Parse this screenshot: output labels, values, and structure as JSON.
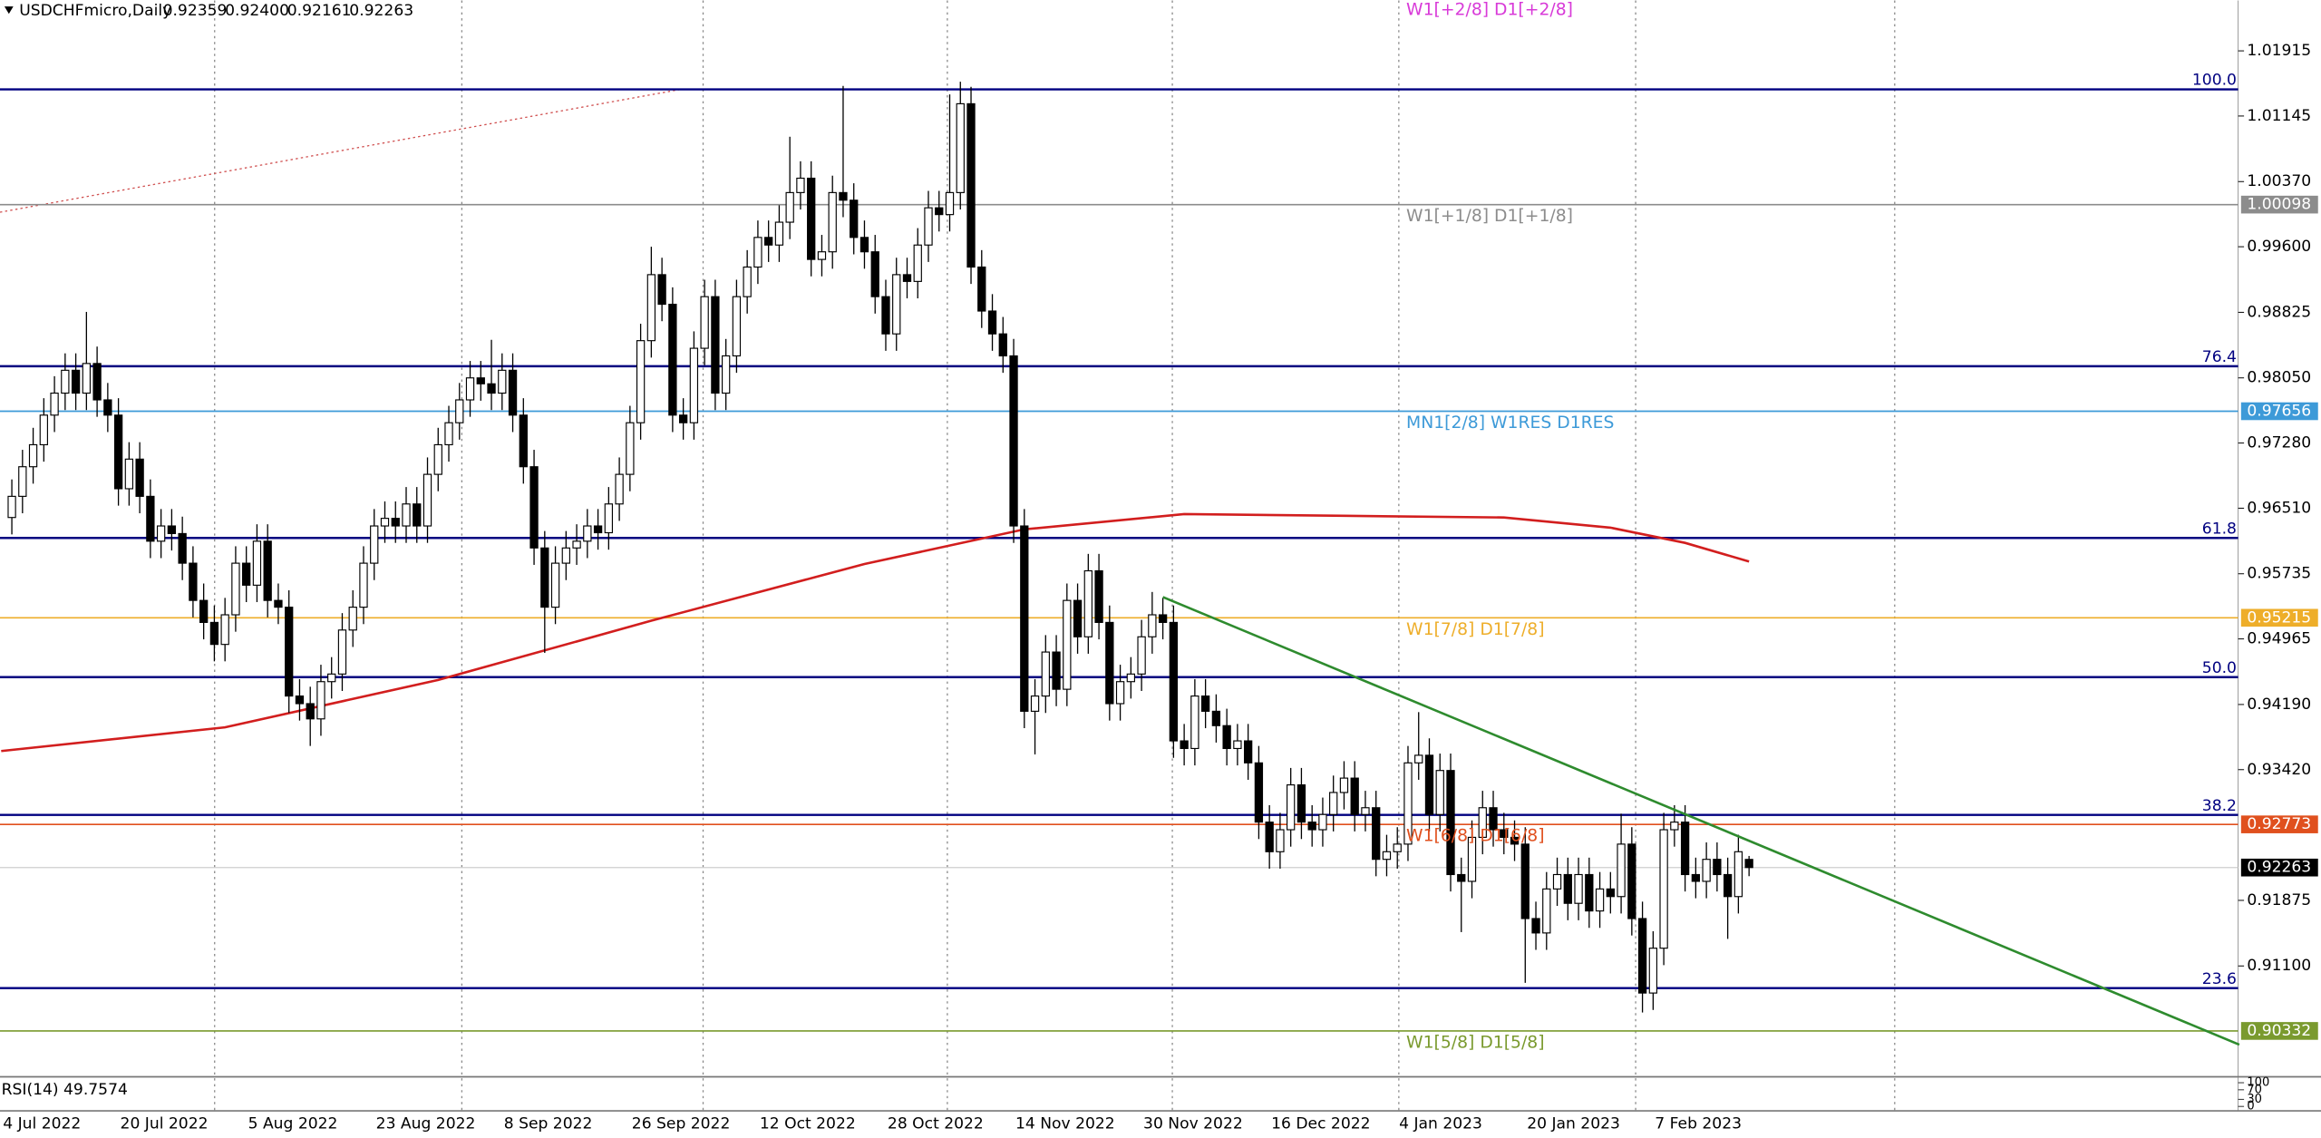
{
  "chart_data": {
    "type": "candlestick",
    "header": {
      "symbol": "USDCHFmicro,Daily",
      "ohlc_labels": [
        "0.92359",
        "0.92400",
        "0.92161",
        "0.92263"
      ]
    },
    "categories": [
      "4 Jul 2022",
      null,
      null,
      null,
      null,
      null,
      null,
      null,
      null,
      null,
      null,
      "20 Jul 2022",
      null,
      null,
      null,
      null,
      null,
      null,
      null,
      null,
      null,
      null,
      null,
      "5 Aug 2022",
      null,
      null,
      null,
      null,
      null,
      null,
      null,
      null,
      null,
      null,
      null,
      "23 Aug 2022",
      null,
      null,
      null,
      null,
      null,
      null,
      null,
      null,
      null,
      null,
      null,
      "8 Sep 2022",
      null,
      null,
      null,
      null,
      null,
      null,
      null,
      null,
      null,
      null,
      null,
      "26 Sep 2022",
      null,
      null,
      null,
      null,
      null,
      null,
      null,
      null,
      null,
      null,
      null,
      "12 Oct 2022",
      null,
      null,
      null,
      null,
      null,
      null,
      null,
      null,
      null,
      null,
      null,
      "28 Oct 2022",
      null,
      null,
      null,
      null,
      null,
      null,
      null,
      null,
      null,
      null,
      null,
      "14 Nov 2022",
      null,
      null,
      null,
      null,
      null,
      null,
      null,
      null,
      null,
      null,
      null,
      "30 Nov 2022",
      null,
      null,
      null,
      null,
      null,
      null,
      null,
      null,
      null,
      null,
      null,
      "16 Dec 2022",
      null,
      null,
      null,
      null,
      null,
      null,
      null,
      null,
      null,
      null,
      null,
      "4 Jan 2023",
      null,
      null,
      null,
      null,
      null,
      null,
      null,
      null,
      null,
      null,
      null,
      "20 Jan 2023",
      null,
      null,
      null,
      null,
      null,
      null,
      null,
      null,
      null,
      null,
      null,
      "7 Feb 2023",
      null,
      null,
      null,
      null,
      null,
      null,
      null,
      null
    ],
    "open": [
      0.964,
      0.9665,
      0.97,
      0.9726,
      0.9761,
      0.9787,
      0.9814,
      0.9787,
      0.9822,
      0.9779,
      0.9761,
      0.9674,
      0.9709,
      0.9665,
      0.9612,
      0.963,
      0.9621,
      0.9586,
      0.9542,
      0.9516,
      0.949,
      0.9525,
      0.9586,
      0.956,
      0.9612,
      0.9542,
      0.9534,
      0.9429,
      0.942,
      0.9402,
      0.9446,
      0.9455,
      0.9507,
      0.9534,
      0.9586,
      0.963,
      0.9639,
      0.963,
      0.9656,
      0.963,
      0.9691,
      0.9726,
      0.9752,
      0.9779,
      0.9805,
      0.9798,
      0.9787,
      0.9814,
      0.9761,
      0.97,
      0.9604,
      0.9534,
      0.9586,
      0.9604,
      0.9612,
      0.963,
      0.9622,
      0.9656,
      0.9691,
      0.9752,
      0.9849,
      0.9927,
      0.9892,
      0.9761,
      0.9752,
      0.984,
      0.9901,
      0.9787,
      0.9831,
      0.9901,
      0.9936,
      0.9971,
      0.9962,
      0.9989,
      1.0024,
      1.0041,
      0.9945,
      0.9954,
      1.0024,
      1.0015,
      0.9971,
      0.9954,
      0.9901,
      0.9857,
      0.9927,
      0.9919,
      0.9962,
      1.0006,
      0.9998,
      1.0024,
      1.0129,
      0.9936,
      0.9884,
      0.9857,
      0.9831,
      0.963,
      0.9411,
      0.9429,
      0.9481,
      0.9437,
      0.9542,
      0.9499,
      0.9577,
      0.9516,
      0.942,
      0.9446,
      0.9455,
      0.9499,
      0.9525,
      0.9516,
      0.9376,
      0.9367,
      0.9429,
      0.9411,
      0.9394,
      0.9367,
      0.9376,
      0.935,
      0.928,
      0.9245,
      0.9271,
      0.9324,
      0.928,
      0.9271,
      0.9289,
      0.9315,
      0.9332,
      0.9289,
      0.9297,
      0.9236,
      0.9245,
      0.9254,
      0.935,
      0.9359,
      0.9289,
      0.9341,
      0.9218,
      0.921,
      0.9262,
      0.9297,
      0.9271,
      0.9262,
      0.9254,
      0.9166,
      0.9149,
      0.9201,
      0.9218,
      0.9184,
      0.9218,
      0.9175,
      0.9201,
      0.9192,
      0.9254,
      0.9166,
      0.9078,
      0.9131,
      0.9271,
      0.928,
      0.9218,
      0.921,
      0.9236,
      0.9218,
      0.9192,
      0.92359
    ],
    "high": [
      0.9685,
      0.972,
      0.9746,
      0.9781,
      0.9807,
      0.9834,
      0.9834,
      0.9883,
      0.9842,
      0.9799,
      0.9781,
      0.9729,
      0.9729,
      0.9685,
      0.965,
      0.965,
      0.9641,
      0.9606,
      0.9562,
      0.9536,
      0.9545,
      0.9606,
      0.9606,
      0.9632,
      0.9632,
      0.9562,
      0.9554,
      0.9449,
      0.944,
      0.9466,
      0.9475,
      0.9527,
      0.9554,
      0.9606,
      0.965,
      0.9659,
      0.9659,
      0.9676,
      0.9676,
      0.9711,
      0.9746,
      0.9772,
      0.9799,
      0.9825,
      0.9825,
      0.985,
      0.9834,
      0.9834,
      0.9781,
      0.972,
      0.9624,
      0.9606,
      0.9624,
      0.9632,
      0.965,
      0.965,
      0.9676,
      0.9711,
      0.9772,
      0.9869,
      0.996,
      0.9947,
      0.9912,
      0.9781,
      0.986,
      0.9921,
      0.9921,
      0.9851,
      0.9921,
      0.9956,
      0.9991,
      0.9991,
      1.0009,
      1.009,
      1.0061,
      1.0061,
      0.9974,
      1.0044,
      1.015,
      1.0035,
      0.9991,
      0.9974,
      0.9921,
      0.9947,
      0.9947,
      0.9982,
      1.0026,
      1.0026,
      1.014,
      1.0155,
      1.0149,
      0.9956,
      0.9904,
      0.9877,
      0.9851,
      0.965,
      0.9449,
      0.9501,
      0.9501,
      0.9562,
      0.9562,
      0.9597,
      0.9597,
      0.9536,
      0.9466,
      0.9475,
      0.9519,
      0.9552,
      0.9545,
      0.9536,
      0.9396,
      0.9449,
      0.9449,
      0.9431,
      0.9414,
      0.9396,
      0.9396,
      0.937,
      0.93,
      0.9291,
      0.9344,
      0.9344,
      0.93,
      0.9309,
      0.9335,
      0.9352,
      0.9352,
      0.9317,
      0.9317,
      0.9265,
      0.9274,
      0.937,
      0.941,
      0.9379,
      0.9361,
      0.9361,
      0.9238,
      0.9282,
      0.9317,
      0.9317,
      0.9291,
      0.9282,
      0.9274,
      0.9186,
      0.9221,
      0.9238,
      0.9238,
      0.9238,
      0.9238,
      0.9221,
      0.9221,
      0.929,
      0.9274,
      0.9186,
      0.9151,
      0.9291,
      0.93,
      0.93,
      0.9238,
      0.9256,
      0.9256,
      0.9238,
      0.9265,
      0.924
    ],
    "low": [
      0.962,
      0.9645,
      0.968,
      0.9706,
      0.9741,
      0.9767,
      0.9767,
      0.9767,
      0.9759,
      0.9741,
      0.9654,
      0.9654,
      0.9645,
      0.9592,
      0.9592,
      0.9601,
      0.9566,
      0.9522,
      0.9496,
      0.947,
      0.947,
      0.9505,
      0.954,
      0.954,
      0.9522,
      0.9514,
      0.9409,
      0.94,
      0.937,
      0.9382,
      0.9426,
      0.9435,
      0.9487,
      0.9514,
      0.9566,
      0.961,
      0.961,
      0.961,
      0.961,
      0.961,
      0.9671,
      0.9706,
      0.9732,
      0.9759,
      0.9778,
      0.9767,
      0.9767,
      0.9741,
      0.968,
      0.9584,
      0.948,
      0.9514,
      0.9566,
      0.9584,
      0.9592,
      0.9602,
      0.9602,
      0.9636,
      0.9671,
      0.9732,
      0.9829,
      0.9872,
      0.9741,
      0.9732,
      0.9732,
      0.982,
      0.9767,
      0.9767,
      0.9811,
      0.9881,
      0.9916,
      0.9942,
      0.9942,
      0.9969,
      1.0004,
      0.9925,
      0.9925,
      0.9934,
      0.9995,
      0.9951,
      0.9934,
      0.9881,
      0.9837,
      0.9837,
      0.9899,
      0.9899,
      0.9942,
      0.9978,
      0.9978,
      1.0004,
      0.9916,
      0.9864,
      0.9837,
      0.9811,
      0.961,
      0.9391,
      0.936,
      0.9409,
      0.9417,
      0.9417,
      0.9479,
      0.9479,
      0.9496,
      0.94,
      0.94,
      0.9426,
      0.9435,
      0.9479,
      0.9496,
      0.9356,
      0.9347,
      0.9347,
      0.9391,
      0.9374,
      0.9347,
      0.9347,
      0.933,
      0.926,
      0.9225,
      0.9225,
      0.9251,
      0.926,
      0.9251,
      0.9251,
      0.9269,
      0.9295,
      0.9269,
      0.9269,
      0.9216,
      0.9216,
      0.9225,
      0.9234,
      0.933,
      0.9269,
      0.9269,
      0.9198,
      0.915,
      0.919,
      0.9242,
      0.9251,
      0.9242,
      0.9234,
      0.909,
      0.9129,
      0.9129,
      0.9181,
      0.9164,
      0.9164,
      0.9155,
      0.9155,
      0.9172,
      0.9172,
      0.9146,
      0.9055,
      0.9058,
      0.9111,
      0.9251,
      0.9198,
      0.919,
      0.919,
      0.9198,
      0.9142,
      0.9172,
      0.92161
    ],
    "close": [
      0.9665,
      0.97,
      0.9726,
      0.9761,
      0.9787,
      0.9814,
      0.9787,
      0.9822,
      0.9779,
      0.9761,
      0.9674,
      0.9709,
      0.9665,
      0.9612,
      0.963,
      0.9621,
      0.9586,
      0.9542,
      0.9516,
      0.949,
      0.9525,
      0.9586,
      0.956,
      0.9612,
      0.9542,
      0.9534,
      0.9429,
      0.942,
      0.9402,
      0.9446,
      0.9455,
      0.9507,
      0.9534,
      0.9586,
      0.963,
      0.9639,
      0.963,
      0.9656,
      0.963,
      0.9691,
      0.9726,
      0.9752,
      0.9779,
      0.9805,
      0.9798,
      0.9787,
      0.9814,
      0.9761,
      0.97,
      0.9604,
      0.9534,
      0.9586,
      0.9604,
      0.9612,
      0.963,
      0.9622,
      0.9656,
      0.9691,
      0.9752,
      0.9849,
      0.9927,
      0.9892,
      0.9761,
      0.9752,
      0.984,
      0.9901,
      0.9787,
      0.9831,
      0.9901,
      0.9936,
      0.9971,
      0.9962,
      0.9989,
      1.0024,
      1.0041,
      0.9945,
      0.9954,
      1.0024,
      1.0015,
      0.9971,
      0.9954,
      0.9901,
      0.9857,
      0.9927,
      0.9919,
      0.9962,
      1.0006,
      0.9998,
      1.0024,
      1.0129,
      0.9936,
      0.9884,
      0.9857,
      0.9831,
      0.963,
      0.9411,
      0.9429,
      0.9481,
      0.9437,
      0.9542,
      0.9499,
      0.9577,
      0.9516,
      0.942,
      0.9446,
      0.9455,
      0.9499,
      0.9525,
      0.9516,
      0.9376,
      0.9367,
      0.9429,
      0.9411,
      0.9394,
      0.9367,
      0.9376,
      0.935,
      0.928,
      0.9245,
      0.9271,
      0.9324,
      0.928,
      0.9271,
      0.9289,
      0.9315,
      0.9332,
      0.9289,
      0.9297,
      0.9236,
      0.9245,
      0.9254,
      0.935,
      0.9359,
      0.9289,
      0.9341,
      0.9218,
      0.921,
      0.9262,
      0.9297,
      0.9271,
      0.9262,
      0.9254,
      0.9166,
      0.9149,
      0.9201,
      0.9218,
      0.9184,
      0.9218,
      0.9175,
      0.9201,
      0.9192,
      0.9254,
      0.9166,
      0.9078,
      0.9131,
      0.9271,
      0.928,
      0.9218,
      0.921,
      0.9236,
      0.9218,
      0.9192,
      0.9245,
      0.92263
    ],
    "up_color": "#ffffff",
    "down_color": "#000000",
    "ylim": [
      0.8979,
      1.0251
    ],
    "yticks": [
      1.01915,
      1.01145,
      {
        "value": 1.0037,
        "label": "1.00370"
      },
      {
        "value": 0.996,
        "label": "0.99600"
      },
      0.98825,
      {
        "value": 0.9805,
        "label": "0.98050"
      },
      {
        "value": 0.9728,
        "label": "0.97280"
      },
      {
        "value": 0.9651,
        "label": "0.96510"
      },
      0.95735,
      0.94965,
      {
        "value": 0.9419,
        "label": "0.94190"
      },
      {
        "value": 0.9342,
        "label": "0.93420"
      },
      0.91875,
      {
        "value": 0.911,
        "label": "0.91100"
      }
    ],
    "fib_color": "#000080",
    "fib_levels": [
      {
        "label": "100.0",
        "value": 1.0146
      },
      {
        "label": "76.4",
        "value": 0.98188
      },
      {
        "label": "61.8",
        "value": 0.96158
      },
      {
        "label": "50.0",
        "value": 0.94513
      },
      {
        "label": "38.2",
        "value": 0.92885
      },
      {
        "label": "23.6",
        "value": 0.90838
      }
    ],
    "murrey": [
      {
        "name": "W1[+2/8] D1[+2/8]",
        "value": 1.0254,
        "color": "#d83ad8",
        "tag": false
      },
      {
        "name": "W1[+1/8] D1[+1/8]",
        "value": 1.00098,
        "color": "#8c8c8c",
        "tag": true
      },
      {
        "name": "MN1[2/8] W1RES D1RES",
        "value": 0.97656,
        "color": "#3d9ad8",
        "tag": true
      },
      {
        "name": "W1[7/8] D1[7/8]",
        "value": 0.95215,
        "color": "#eeae2a",
        "tag": true
      },
      {
        "name": "W1[6/8] D1[6/8]",
        "value": 0.92773,
        "color": "#e0501e",
        "tag": true
      },
      {
        "name": "W1[5/8] D1[5/8]",
        "value": 0.90332,
        "color": "#7a9a2e",
        "tag": true
      }
    ],
    "moving_average": {
      "color": "#d21e1e",
      "x": [
        -1,
        20,
        40,
        60,
        80,
        95,
        110,
        125,
        140,
        150,
        157,
        163
      ],
      "values": [
        0.9364,
        0.9392,
        0.9448,
        0.9518,
        0.9585,
        0.9626,
        0.9644,
        0.9642,
        0.964,
        0.9628,
        0.961,
        0.9588
      ]
    },
    "trendline": {
      "color": "#2e8b2e",
      "x": [
        108,
        209
      ],
      "values": [
        0.9546,
        0.9017
      ]
    },
    "rsi": {
      "label": "RSI(14) 49.7574",
      "ylim": [
        0,
        100
      ],
      "yticks": [
        0,
        30,
        70,
        100
      ]
    }
  }
}
